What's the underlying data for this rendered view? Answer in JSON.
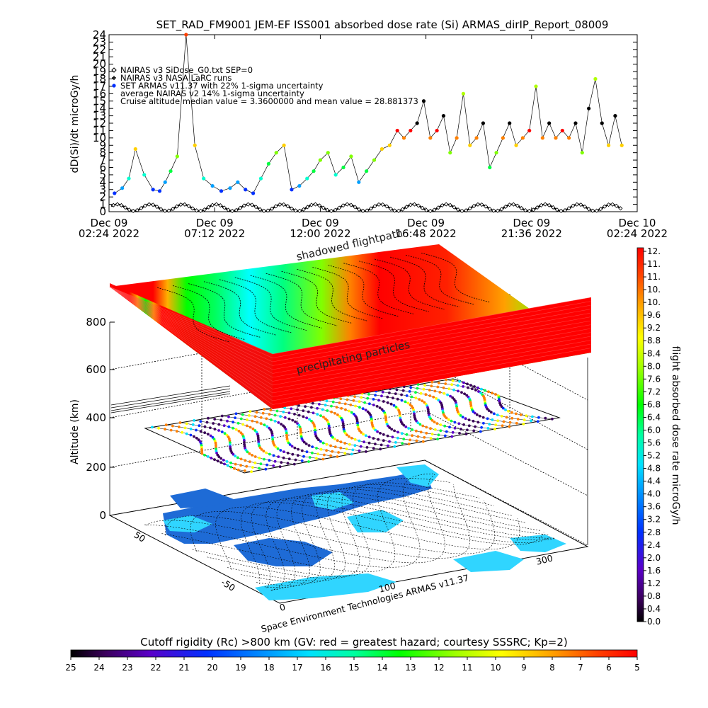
{
  "chart_data": [
    {
      "type": "scatter",
      "title": "SET_RAD_FM9001  JEM-EF ISS001 absorbed dose rate (Si) ARMAS_dirIP_Report_08009",
      "ylabel": "dD(Si)/dt microGy/h",
      "ylim": [
        0,
        24
      ],
      "y_ticks": [
        "0",
        "1",
        "2",
        "3",
        "4",
        "5",
        "6",
        "7",
        "8",
        "9",
        "10",
        "11",
        "12",
        "13",
        "14",
        "15",
        "16",
        "17",
        "18",
        "19",
        "20",
        "21",
        "22",
        "23",
        "24"
      ],
      "x_ticks": [
        {
          "date": "Dec 09",
          "time": "02:24",
          "year": "2022"
        },
        {
          "date": "Dec 09",
          "time": "07:12",
          "year": "2022"
        },
        {
          "date": "Dec 09",
          "time": "12:00",
          "year": "2022"
        },
        {
          "date": "Dec 09",
          "time": "16:48",
          "year": "2022"
        },
        {
          "date": "Dec 09",
          "time": "21:36",
          "year": "2022"
        },
        {
          "date": "Dec 10",
          "time": "02:24",
          "year": "2022"
        }
      ],
      "legend": [
        {
          "symbol": "diamond",
          "label": "NAIRAS v3 SiDose_G0.txt SEP=0"
        },
        {
          "symbol": "plus",
          "label": "NAIRAS v3 NASA LaRC runs"
        },
        {
          "symbol": "dot",
          "label": "SET ARMAS v11.37 with 22% 1-sigma uncertainty"
        },
        {
          "symbol": "none",
          "label": "average NAIRAS v2 14% 1-sigma uncertainty"
        },
        {
          "symbol": "none",
          "label": "Cruise altitude median value = 3.3600000 and mean value = 28.881373"
        }
      ],
      "legend_placement": "top-left",
      "x": [
        0.25,
        0.6,
        0.9,
        1.2,
        1.6,
        2.0,
        2.3,
        2.55,
        2.8,
        3.1,
        3.5,
        3.9,
        4.3,
        4.7,
        5.1,
        5.5,
        5.85,
        6.2,
        6.55,
        6.9,
        7.25,
        7.6,
        7.95,
        8.3,
        8.65,
        9.0,
        9.3,
        9.6,
        9.95,
        10.3,
        10.65,
        11.0,
        11.35,
        11.7,
        12.05,
        12.4,
        12.75,
        13.1,
        13.4,
        13.7,
        14.0,
        14.3,
        14.6,
        14.9,
        15.2,
        15.5,
        15.8,
        16.1,
        16.4,
        16.7,
        17.0,
        17.3,
        17.6,
        17.9,
        18.2,
        18.5,
        18.8,
        19.1,
        19.4,
        19.7,
        20.0,
        20.3,
        20.6,
        20.9,
        21.2,
        21.5,
        21.8,
        22.1,
        22.4,
        22.7,
        23.0,
        23.3
      ],
      "y": [
        2.5,
        3.2,
        4.5,
        8.5,
        5.0,
        3.0,
        2.8,
        4.0,
        5.5,
        7.5,
        24.0,
        9.0,
        4.5,
        3.5,
        2.8,
        3.2,
        4.0,
        3.0,
        2.5,
        4.5,
        6.5,
        8.0,
        9.0,
        3.0,
        3.5,
        4.5,
        5.5,
        7.0,
        8.0,
        5.0,
        6.0,
        7.5,
        4.0,
        5.5,
        7.0,
        8.5,
        9.0,
        11.0,
        10.0,
        11.0,
        12.0,
        15.0,
        10.0,
        11.0,
        13.0,
        8.0,
        10.0,
        16.0,
        9.0,
        10.0,
        12.0,
        6.0,
        8.0,
        10.0,
        12.0,
        9.0,
        10.0,
        11.0,
        17.0,
        10.0,
        12.0,
        10.0,
        11.0,
        10.0,
        12.0,
        8.0,
        14.0,
        18.0,
        12.0,
        9.0,
        13.0,
        9.0
      ]
    },
    {
      "type": "heatmap",
      "x_ticks": [
        "0",
        "100",
        "300"
      ],
      "y_ticks": [
        "50",
        "-50"
      ],
      "z_ticks": [
        "0",
        "200",
        "400",
        "600",
        "800"
      ],
      "zlabel": "Altitude (km)",
      "annotations": [
        "shadowed flightpath",
        "precipitating particles"
      ],
      "credit": "Space Environment Technologies ARMAS v11.37",
      "colorbar_right": {
        "label": "flight absorbed dose rate microGy/h",
        "ticks": [
          "12.",
          "11.",
          "11.",
          "10.",
          "10.",
          "9.6",
          "9.2",
          "8.8",
          "8.4",
          "8.0",
          "7.6",
          "7.2",
          "6.8",
          "6.4",
          "6.0",
          "5.6",
          "5.2",
          "4.8",
          "4.4",
          "4.0",
          "3.6",
          "3.2",
          "2.8",
          "2.4",
          "2.0",
          "1.6",
          "1.2",
          "0.8",
          "0.4",
          "0.0"
        ]
      },
      "colorbar_bottom": {
        "label": "Cutoff rigidity (Rc) >800 km (GV: red = greatest hazard; courtesy SSSRC; Kp=2)",
        "ticks": [
          "25",
          "24",
          "23",
          "22",
          "21",
          "20",
          "19",
          "18",
          "17",
          "16",
          "15",
          "14",
          "13",
          "12",
          "11",
          "10",
          "9",
          "8",
          "7",
          "6",
          "5"
        ]
      }
    }
  ],
  "colors": {
    "red": "#ff0000",
    "orange": "#ff8800",
    "yellow": "#ffff00",
    "green": "#00ff00",
    "cyan": "#00ffff",
    "blue": "#0055ff",
    "purple": "#5500aa",
    "black": "#000000",
    "land": "#1e6bd6",
    "ocean_light": "#30d5ff"
  }
}
